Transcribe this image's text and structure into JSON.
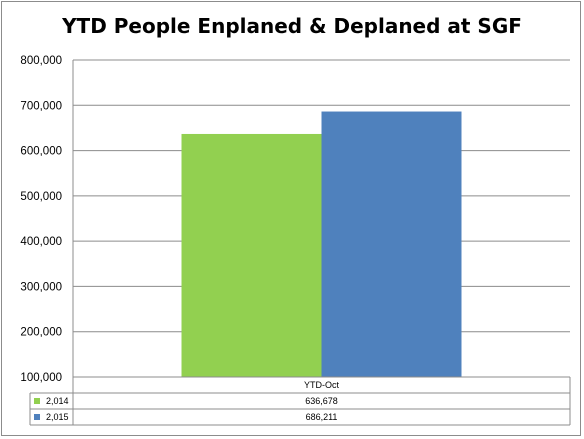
{
  "chart_data": {
    "type": "bar",
    "title": "YTD People Enplaned & Deplaned at SGF",
    "categories": [
      "YTD-Oct"
    ],
    "series": [
      {
        "name": "2,014",
        "values": [
          636678
        ],
        "value_labels": [
          "636,678"
        ],
        "color": "#92d050"
      },
      {
        "name": "2,015",
        "values": [
          686211
        ],
        "value_labels": [
          "686,211"
        ],
        "color": "#4f81bd"
      }
    ],
    "ylim": [
      100000,
      800000
    ],
    "yticks": [
      100000,
      200000,
      300000,
      400000,
      500000,
      600000,
      700000,
      800000
    ],
    "ytick_labels": [
      "100,000",
      "200,000",
      "300,000",
      "400,000",
      "500,000",
      "600,000",
      "700,000",
      "800,000"
    ],
    "grid": true,
    "legend": "data-table"
  }
}
